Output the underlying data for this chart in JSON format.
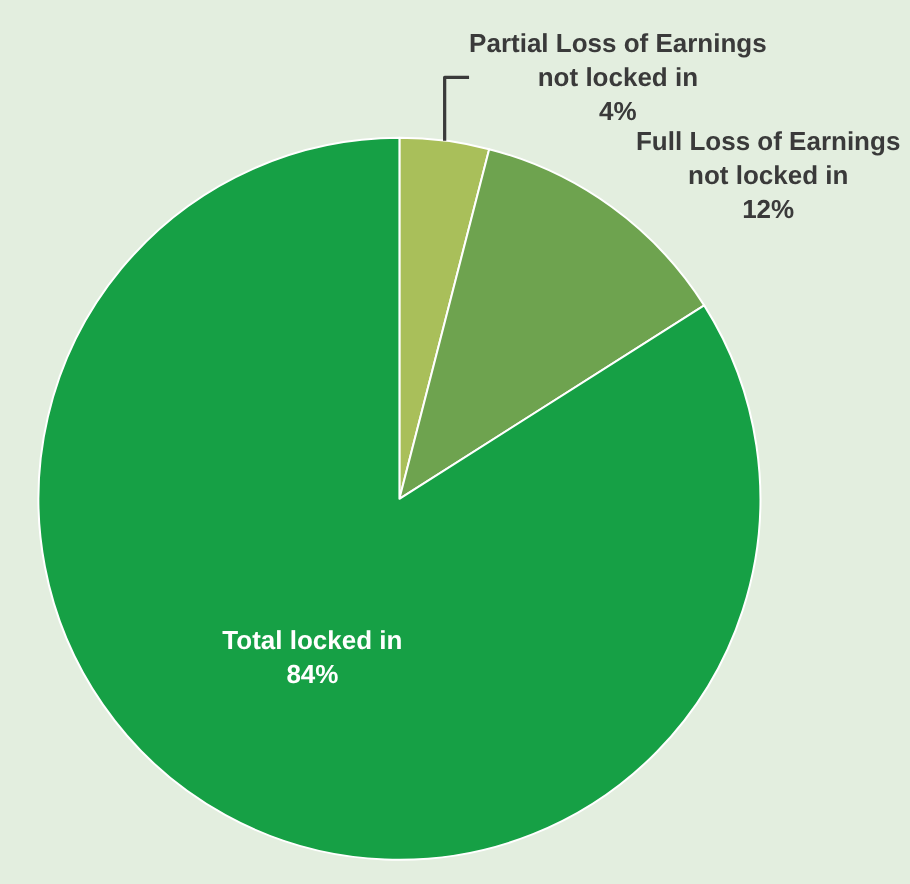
{
  "chart_data": {
    "type": "pie",
    "categories": [
      "Partial Loss of Earnings\nnot locked in",
      "Full Loss of Earnings\nnot locked in",
      "Total locked in"
    ],
    "values": [
      4,
      12,
      84
    ],
    "value_labels": [
      "4%",
      "12%",
      "84%"
    ],
    "colors": [
      "#a9bf5a",
      "#6ea34f",
      "#16a045"
    ],
    "legend": false
  }
}
